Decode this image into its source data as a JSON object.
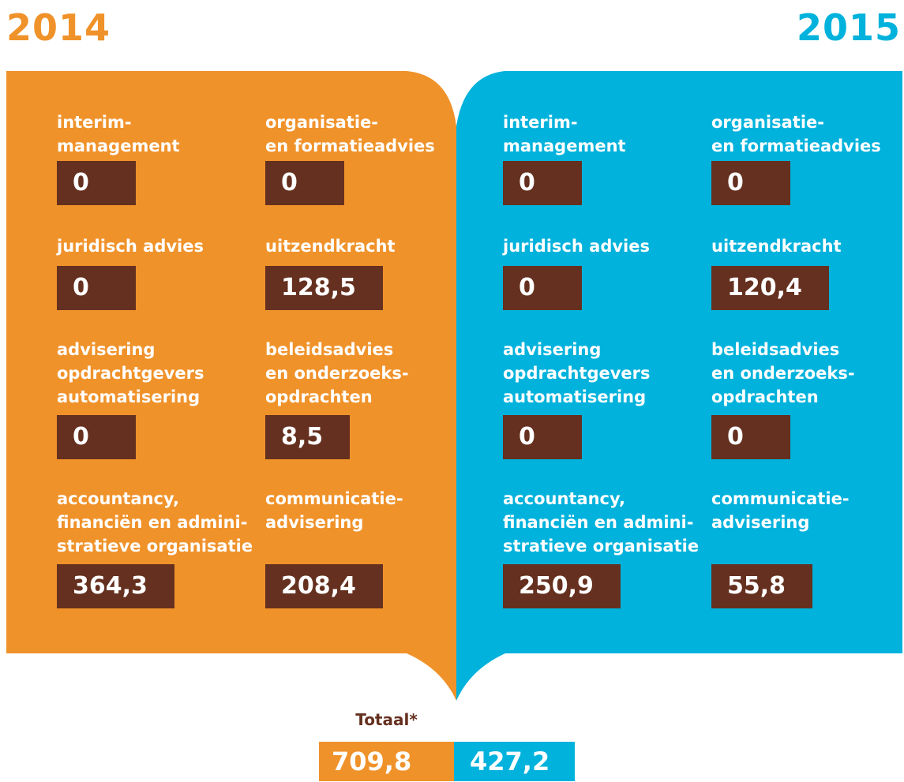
{
  "years": [
    "2014",
    "2015"
  ],
  "panels": [
    {
      "items": [
        {
          "label": [
            "interim-",
            "management"
          ],
          "value": "0"
        },
        {
          "label": [
            "organisatie-",
            "en formatieadvies"
          ],
          "value": "0"
        },
        {
          "label": [
            "juridisch advies"
          ],
          "value": "0"
        },
        {
          "label": [
            "uitzendkracht"
          ],
          "value": "128,5"
        },
        {
          "label": [
            "advisering",
            "opdrachtgevers",
            "automatisering"
          ],
          "value": "0"
        },
        {
          "label": [
            "beleidsadvies",
            "en onderzoeks-",
            "opdrachten"
          ],
          "value": "8,5"
        },
        {
          "label": [
            "accountancy,",
            "financiën en admini-",
            "stratieve organisatie"
          ],
          "value": "364,3"
        },
        {
          "label": [
            "communicatie-",
            "advisering"
          ],
          "value": "208,4"
        }
      ]
    },
    {
      "items": [
        {
          "label": [
            "interim-",
            "management"
          ],
          "value": "0"
        },
        {
          "label": [
            "organisatie-",
            "en formatieadvies"
          ],
          "value": "0"
        },
        {
          "label": [
            "juridisch advies"
          ],
          "value": "0"
        },
        {
          "label": [
            "uitzendkracht"
          ],
          "value": "120,4"
        },
        {
          "label": [
            "advisering",
            "opdrachtgevers",
            "automatisering"
          ],
          "value": "0"
        },
        {
          "label": [
            "beleidsadvies",
            "en onderzoeks-",
            "opdrachten"
          ],
          "value": "0"
        },
        {
          "label": [
            "accountancy,",
            "financiën en admini-",
            "stratieve organisatie"
          ],
          "value": "250,9"
        },
        {
          "label": [
            "communicatie-",
            "advisering"
          ],
          "value": "55,8"
        }
      ]
    }
  ],
  "total": {
    "label": "Totaal*",
    "values": [
      "709,8",
      "427,2"
    ]
  }
}
